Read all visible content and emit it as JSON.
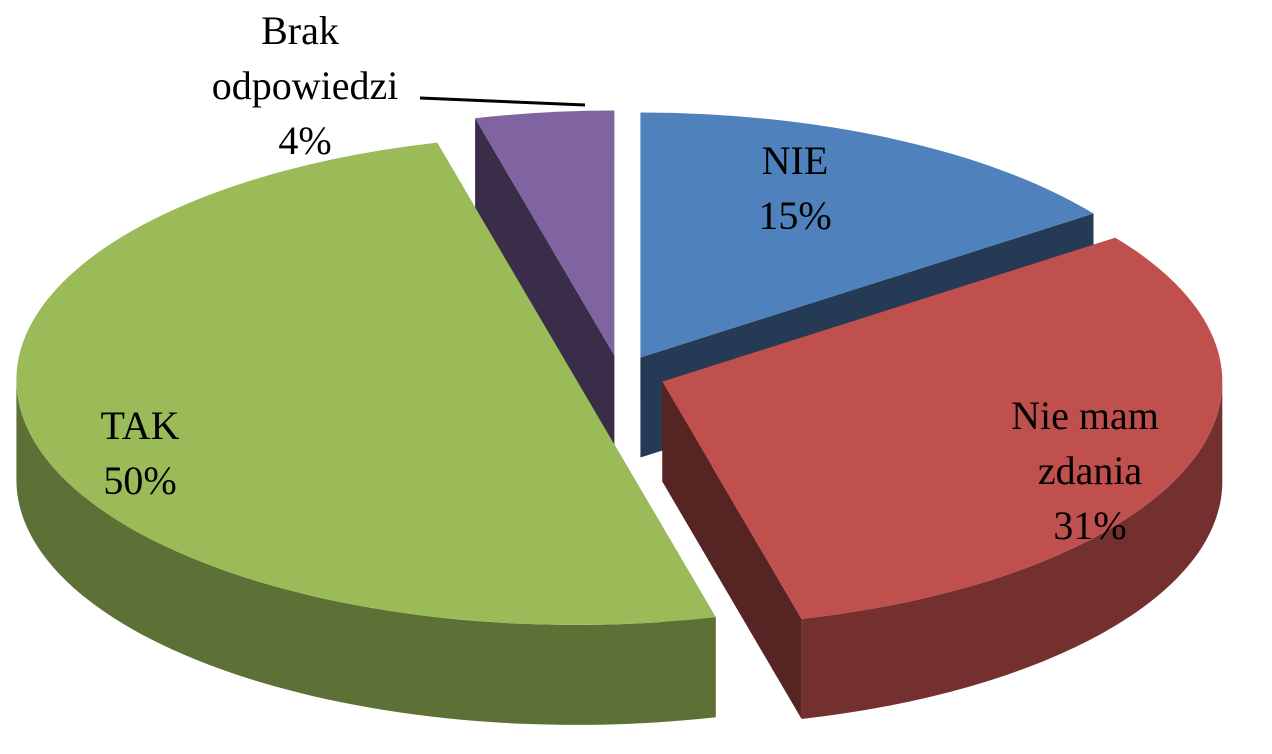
{
  "chart_data": {
    "type": "pie",
    "categories": [
      "NIE",
      "Nie mam zdania",
      "TAK",
      "Brak odpowiedzi"
    ],
    "values": [
      15,
      31,
      50,
      4
    ],
    "value_labels": [
      "15%",
      "31%",
      "50%",
      "4%"
    ],
    "colors": [
      "#4f81bd",
      "#c0504d",
      "#9bbb59",
      "#8064a2"
    ]
  }
}
